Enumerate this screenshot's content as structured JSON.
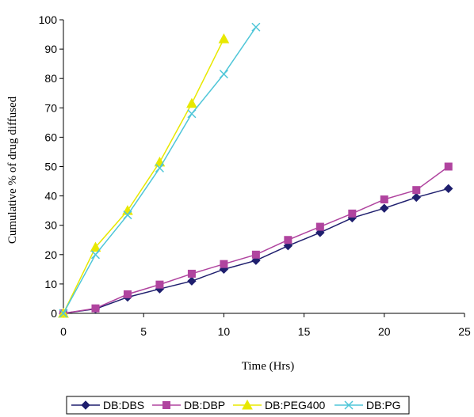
{
  "chart_data": {
    "type": "line",
    "xlabel": "Time (Hrs)",
    "ylabel": "Cumulative % of drug diffused",
    "xlim": [
      0,
      25
    ],
    "ylim": [
      0,
      100
    ],
    "xticks": [
      "0",
      "5",
      "10",
      "15",
      "20",
      "25"
    ],
    "yticks": [
      "0",
      "10",
      "20",
      "30",
      "40",
      "50",
      "60",
      "70",
      "80",
      "90",
      "100"
    ],
    "grid": false,
    "legend_position": "bottom",
    "series": [
      {
        "name": "DB:DBS",
        "color": "#1f1f6e",
        "marker": "diamond",
        "x": [
          0,
          2,
          4,
          6,
          8,
          10,
          12,
          14,
          16,
          18,
          20,
          22,
          24
        ],
        "y": [
          0,
          1.5,
          5.5,
          8.3,
          11,
          15,
          18,
          23,
          27.5,
          32.5,
          35.8,
          39.5,
          42.5
        ]
      },
      {
        "name": "DB:DBP",
        "color": "#b0449f",
        "marker": "square",
        "x": [
          0,
          2,
          4,
          6,
          8,
          10,
          12,
          14,
          16,
          18,
          20,
          22,
          24
        ],
        "y": [
          0,
          1.7,
          6.5,
          9.8,
          13.5,
          16.8,
          20,
          25,
          29.5,
          34,
          38.8,
          42,
          50
        ]
      },
      {
        "name": "DB:PEG400",
        "color": "#e8e800",
        "marker": "triangle",
        "x": [
          0,
          2,
          4,
          6,
          8,
          10
        ],
        "y": [
          0,
          22.5,
          35,
          51.5,
          71.5,
          93.5
        ]
      },
      {
        "name": "DB:PG",
        "color": "#4fc6d8",
        "marker": "x",
        "x": [
          0,
          2,
          4,
          6,
          8,
          10,
          12
        ],
        "y": [
          0,
          20,
          33.5,
          49.5,
          68,
          81.5,
          97.5
        ]
      }
    ]
  }
}
